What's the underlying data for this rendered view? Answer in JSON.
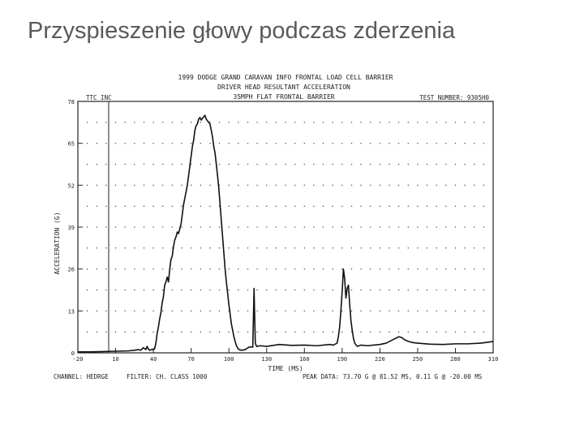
{
  "slide": {
    "title": "Przyspieszenie głowy podczas zderzenia"
  },
  "chart_data": {
    "type": "line",
    "header_lines": [
      "1999 DODGE GRAND CARAVAN INFO FRONTAL LOAD CELL BARRIER",
      "DRIVER HEAD RESULTANT ACCELERATION",
      "35MPH FLAT FRONTAL BARRIER"
    ],
    "lab": "TTC INC",
    "test_number": "TEST NUMBER: 9305H0",
    "xlabel": "TIME (MS)",
    "ylabel": "ACCELERATION (G)",
    "xlim": [
      -20,
      310
    ],
    "ylim": [
      0,
      78
    ],
    "xticks": [
      -20,
      10,
      40,
      70,
      100,
      130,
      160,
      190,
      220,
      250,
      280,
      310
    ],
    "yticks": [
      0,
      13,
      26,
      39,
      52,
      65,
      78
    ],
    "xtick_labels": [
      "-20",
      "10",
      "40",
      "70",
      "100",
      "130",
      "160",
      "190",
      "220",
      "250",
      "280",
      "310"
    ],
    "ytick_labels": [
      "0",
      "13",
      "26",
      "39",
      "52",
      "65",
      "78"
    ],
    "grid": true,
    "footer_left": "CHANNEL: HEDRGE",
    "footer_mid": "FILTER: CH. CLASS 1000",
    "footer_right": "PEAK DATA: 73.70 G @ 81.52 MS, 0.11 G @ -20.00 MS",
    "series": [
      {
        "x": [
          -20,
          -10,
          0,
          10,
          20,
          25,
          28,
          30,
          32,
          34,
          35,
          36,
          37,
          38,
          40,
          41,
          42,
          43,
          44,
          45,
          46,
          47,
          48,
          49,
          50,
          51,
          52,
          53,
          54,
          55,
          56,
          57,
          58,
          59,
          60,
          61,
          62,
          63,
          64,
          65,
          66,
          67,
          68,
          69,
          70,
          71,
          72,
          73,
          74,
          75,
          76,
          77,
          78,
          79,
          80,
          81,
          82,
          83,
          84,
          85,
          86,
          87,
          88,
          89,
          90,
          91,
          92,
          93,
          94,
          95,
          96,
          97,
          98,
          99,
          100,
          101,
          102,
          103,
          104,
          105,
          106,
          107,
          108,
          110,
          113,
          116,
          119,
          120,
          121,
          122,
          125,
          130,
          140,
          150,
          160,
          170,
          180,
          183,
          186,
          187,
          188,
          189,
          190,
          191,
          192,
          193,
          194,
          195,
          196,
          197,
          198,
          199,
          200,
          201,
          202,
          205,
          210,
          215,
          220,
          225,
          230,
          233,
          235,
          237,
          240,
          243,
          246,
          250,
          260,
          270,
          280,
          290,
          300,
          310
        ],
        "y": [
          0.3,
          0.3,
          0.4,
          0.5,
          0.6,
          0.8,
          1.0,
          0.8,
          1.6,
          1.0,
          2.0,
          1.2,
          0.8,
          1.0,
          1.0,
          1.3,
          3.0,
          6.0,
          8.0,
          10.5,
          12.5,
          15.5,
          17.5,
          21.0,
          22.0,
          23.5,
          22.0,
          26.0,
          29.0,
          30.0,
          33.0,
          35.0,
          36.0,
          37.5,
          37.0,
          38.5,
          40.0,
          43.0,
          46.0,
          48.0,
          50.0,
          52.0,
          55.0,
          58.0,
          61.0,
          64.0,
          66.0,
          69.0,
          70.5,
          71.0,
          72.5,
          73.0,
          72.2,
          72.8,
          73.2,
          73.7,
          72.5,
          72.0,
          71.5,
          71.0,
          69.0,
          67.0,
          64.0,
          62.0,
          58.5,
          55.0,
          51.0,
          46.0,
          41.0,
          36.0,
          31.0,
          26.0,
          22.0,
          18.5,
          15.0,
          12.0,
          9.0,
          7.0,
          5.0,
          3.5,
          2.2,
          1.5,
          1.0,
          0.8,
          1.0,
          1.8,
          1.8,
          20.0,
          3.0,
          2.0,
          2.2,
          2.0,
          2.6,
          2.3,
          2.4,
          2.2,
          2.6,
          2.4,
          3.0,
          5.0,
          8.0,
          13.0,
          19.0,
          26.0,
          23.0,
          17.0,
          20.0,
          21.0,
          15.0,
          10.0,
          7.0,
          4.5,
          3.0,
          2.5,
          2.0,
          2.4,
          2.2,
          2.4,
          2.6,
          3.0,
          4.0,
          4.6,
          5.0,
          4.8,
          4.0,
          3.5,
          3.2,
          3.0,
          2.7,
          2.6,
          2.8,
          2.8,
          3.0,
          3.5
        ]
      }
    ]
  }
}
